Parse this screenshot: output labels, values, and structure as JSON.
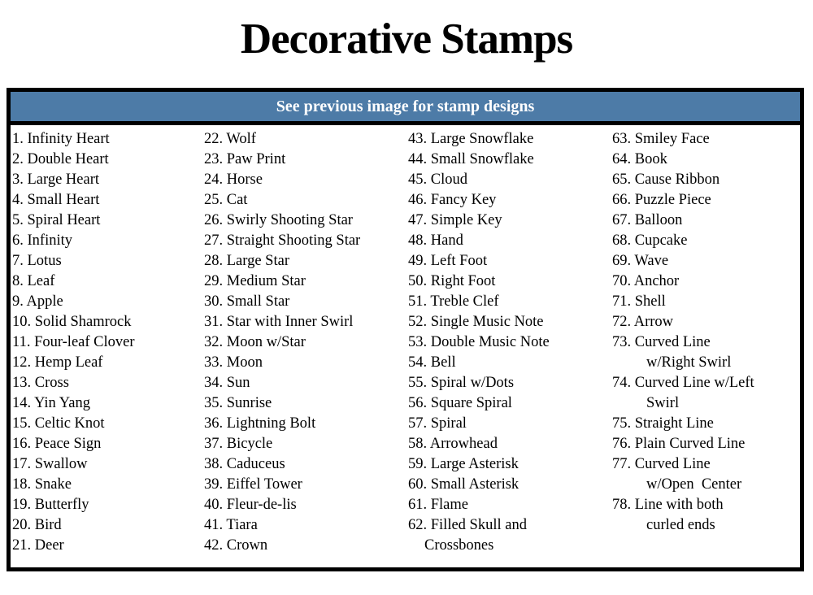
{
  "page_title": "Decorative Stamps",
  "table": {
    "header": "See previous image for stamp designs",
    "colors": {
      "header_bg": "#4d7ba7",
      "header_text": "#ffffff",
      "border": "#000000"
    },
    "columns": [
      {
        "items": [
          "1. Infinity Heart",
          "2. Double Heart",
          "3. Large Heart",
          "4. Small Heart",
          "5. Spiral Heart",
          "6. Infinity",
          "7. Lotus",
          "8. Leaf",
          "9. Apple",
          "10. Solid Shamrock",
          "11. Four-leaf Clover",
          "12. Hemp Leaf",
          "13. Cross",
          "14. Yin Yang",
          "15. Celtic Knot",
          "16. Peace Sign",
          "17. Swallow",
          "18. Snake",
          "19. Butterfly",
          "20. Bird",
          "21. Deer"
        ]
      },
      {
        "items": [
          "22. Wolf",
          "23. Paw Print",
          "24. Horse",
          "25. Cat",
          "26. Swirly Shooting Star",
          "27. Straight Shooting Star",
          "28. Large Star",
          "29. Medium Star",
          "30. Small Star",
          "31. Star with Inner Swirl",
          "32. Moon w/Star",
          "33. Moon",
          "34. Sun",
          "35. Sunrise",
          "36. Lightning Bolt",
          "37. Bicycle",
          "38. Caduceus",
          "39. Eiffel Tower",
          "40. Fleur-de-lis",
          "41. Tiara",
          "42. Crown"
        ]
      },
      {
        "items": [
          "43. Large Snowflake",
          "44. Small Snowflake",
          "45. Cloud",
          "46. Fancy Key",
          "47. Simple Key",
          "48. Hand",
          "49. Left Foot",
          "50. Right Foot",
          "51. Treble Clef",
          "52. Single Music Note",
          "53. Double Music Note",
          "54. Bell",
          "55. Spiral w/Dots",
          "56. Square Spiral",
          "57. Spiral",
          "58. Arrowhead",
          "59. Large Asterisk",
          "60. Small Asterisk",
          "61. Flame",
          "62. Filled Skull and\nCrossbones"
        ]
      },
      {
        "items": [
          "63. Smiley Face",
          "64. Book",
          "65. Cause Ribbon",
          "66. Puzzle Piece",
          "67. Balloon",
          "68. Cupcake",
          "69. Wave",
          "70. Anchor",
          "71. Shell",
          "72. Arrow",
          "73. Curved Line\nw/Right Swirl",
          "74. Curved Line w/Left\nSwirl",
          "75. Straight Line",
          "76. Plain Curved Line",
          "77. Curved Line\nw/Open  Center",
          "78. Line with both\ncurled ends"
        ]
      }
    ]
  }
}
